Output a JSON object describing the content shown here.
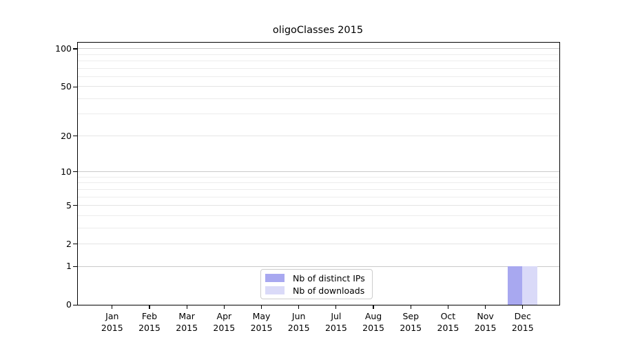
{
  "chart_data": {
    "type": "bar",
    "title": "oligoClasses 2015",
    "x_categories": [
      {
        "month": "Jan",
        "year": "2015"
      },
      {
        "month": "Feb",
        "year": "2015"
      },
      {
        "month": "Mar",
        "year": "2015"
      },
      {
        "month": "Apr",
        "year": "2015"
      },
      {
        "month": "May",
        "year": "2015"
      },
      {
        "month": "Jun",
        "year": "2015"
      },
      {
        "month": "Jul",
        "year": "2015"
      },
      {
        "month": "Aug",
        "year": "2015"
      },
      {
        "month": "Sep",
        "year": "2015"
      },
      {
        "month": "Oct",
        "year": "2015"
      },
      {
        "month": "Nov",
        "year": "2015"
      },
      {
        "month": "Dec",
        "year": "2015"
      }
    ],
    "series": [
      {
        "name": "Nb of distinct IPs",
        "color": "#a8a8f0",
        "values": [
          0,
          0,
          0,
          0,
          0,
          0,
          0,
          0,
          0,
          0,
          0,
          1
        ]
      },
      {
        "name": "Nb of downloads",
        "color": "#dadaf8",
        "values": [
          0,
          0,
          0,
          0,
          0,
          0,
          0,
          0,
          0,
          0,
          0,
          1
        ]
      }
    ],
    "y_axis": {
      "scale": "log1p",
      "tick_values": [
        0,
        1,
        2,
        5,
        10,
        20,
        50,
        100
      ],
      "minor_gridlines": [
        3,
        4,
        6,
        7,
        8,
        9,
        30,
        40,
        60,
        70,
        80,
        90
      ],
      "emphasized_gridlines": [
        1,
        10,
        100
      ],
      "ymax": 111.5,
      "ylim": [
        0,
        111.5
      ]
    },
    "legend": {
      "position": "lower center"
    }
  }
}
